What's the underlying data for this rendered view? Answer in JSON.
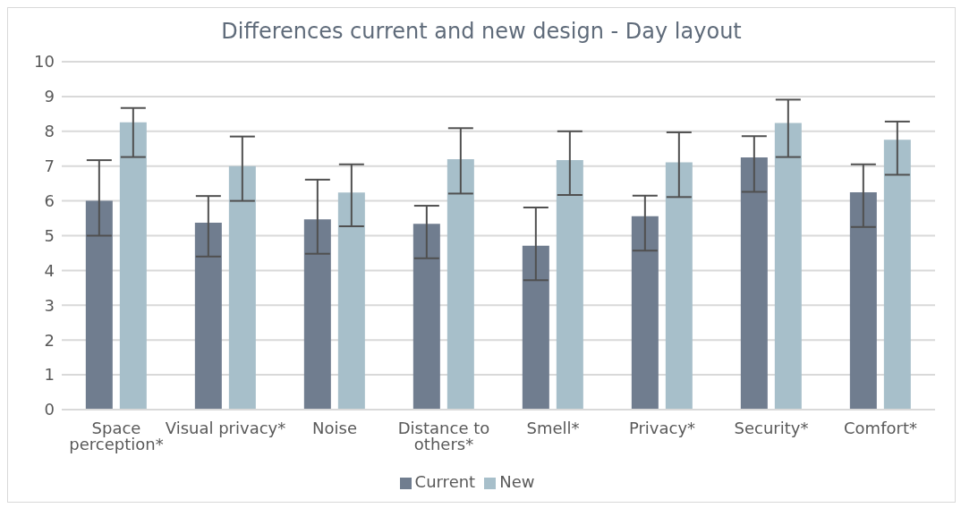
{
  "chart_data": {
    "type": "bar",
    "title": "Differences current and new design - Day layout",
    "categories": [
      "Space perception*",
      "Visual privacy*",
      "Noise",
      "Distance to others*",
      "Smell*",
      "Privacy*",
      "Security*",
      "Comfort*"
    ],
    "series": [
      {
        "name": "Current",
        "color": "#707d8f",
        "values": [
          6.0,
          5.37,
          5.47,
          5.34,
          4.71,
          5.56,
          7.25,
          6.25
        ],
        "errors": [
          [
            5.0,
            7.17
          ],
          [
            4.4,
            6.14
          ],
          [
            4.48,
            6.61
          ],
          [
            4.35,
            5.86
          ],
          [
            3.72,
            5.81
          ],
          [
            4.57,
            6.15
          ],
          [
            6.26,
            7.86
          ],
          [
            5.25,
            7.05
          ]
        ]
      },
      {
        "name": "New",
        "color": "#a7bfca",
        "values": [
          8.26,
          7.0,
          6.24,
          7.2,
          7.17,
          7.11,
          8.24,
          7.76
        ],
        "errors": [
          [
            7.26,
            8.67
          ],
          [
            6.0,
            7.85
          ],
          [
            5.27,
            7.05
          ],
          [
            6.21,
            8.09
          ],
          [
            6.17,
            8.0
          ],
          [
            6.11,
            7.97
          ],
          [
            7.26,
            8.91
          ],
          [
            6.75,
            8.28
          ]
        ]
      }
    ],
    "ylim": [
      0,
      10
    ],
    "yticks": [
      0,
      1,
      2,
      3,
      4,
      5,
      6,
      7,
      8,
      9,
      10
    ],
    "grid": "y",
    "legend": "bottom"
  }
}
